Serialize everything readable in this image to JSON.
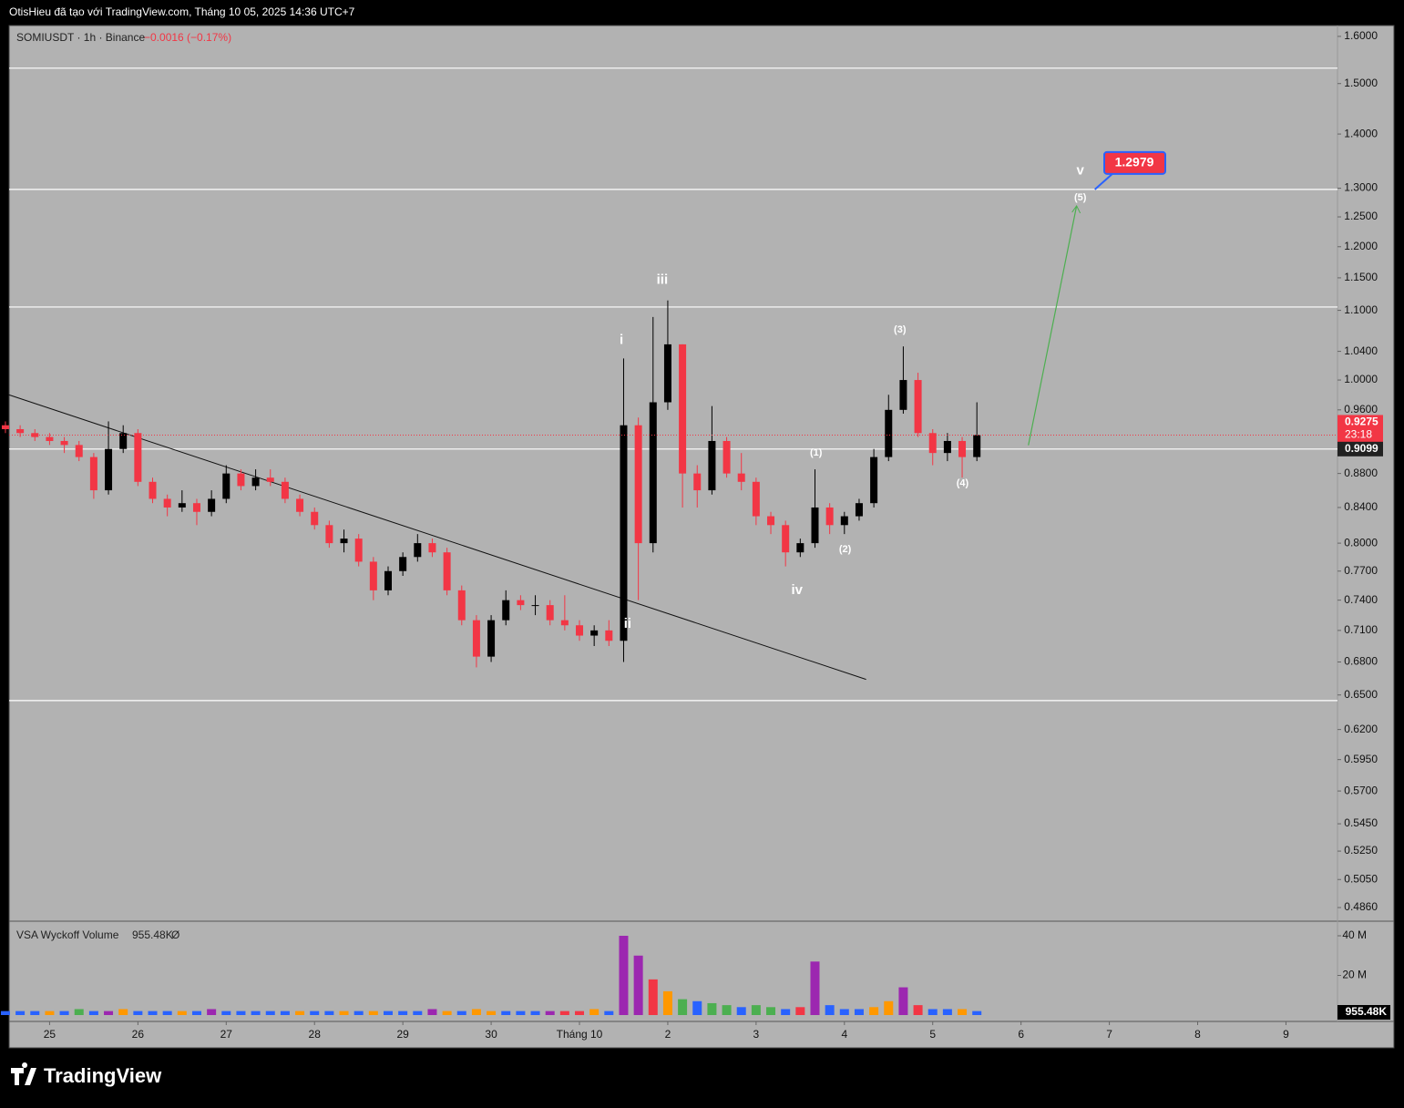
{
  "header": "OtisHieu đã tạo với TradingView.com, Tháng 10 05, 2025 14:36 UTC+7",
  "footer": "TradingView",
  "chart_data": {
    "type": "candlestick",
    "symbol": "SOMIUSDT · 1h · Binance",
    "change": "−0.0016 (−0.17%)",
    "x": [
      -12,
      -8,
      -4,
      0,
      4,
      8,
      12,
      16,
      20,
      24,
      28,
      32,
      36,
      40,
      44,
      48,
      52,
      56,
      60,
      64,
      68,
      72,
      76,
      80,
      84,
      88,
      92,
      96,
      100,
      104,
      108,
      112,
      116,
      120,
      124,
      128,
      132,
      136,
      140,
      144,
      148,
      152,
      156,
      160,
      164,
      168,
      172,
      176,
      180,
      184,
      188,
      192,
      196,
      200,
      204,
      208,
      212,
      216,
      220,
      224,
      228,
      232,
      236,
      240,
      244,
      248,
      252
    ],
    "open": [
      0.94,
      0.935,
      0.93,
      0.925,
      0.92,
      0.915,
      0.9,
      0.86,
      0.91,
      0.93,
      0.87,
      0.85,
      0.84,
      0.845,
      0.835,
      0.85,
      0.88,
      0.865,
      0.875,
      0.87,
      0.85,
      0.835,
      0.82,
      0.8,
      0.805,
      0.78,
      0.75,
      0.77,
      0.785,
      0.8,
      0.79,
      0.75,
      0.72,
      0.685,
      0.72,
      0.74,
      0.735,
      0.735,
      0.72,
      0.715,
      0.705,
      0.71,
      0.7,
      0.94,
      0.8,
      0.97,
      1.05,
      0.88,
      0.86,
      0.92,
      0.88,
      0.87,
      0.83,
      0.82,
      0.79,
      0.8,
      0.84,
      0.82,
      0.83,
      0.845,
      0.9,
      0.96,
      1.0,
      0.93,
      0.905,
      0.92,
      0.9
    ],
    "high": [
      0.945,
      0.94,
      0.935,
      0.93,
      0.925,
      0.92,
      0.905,
      0.945,
      0.94,
      0.935,
      0.875,
      0.855,
      0.86,
      0.85,
      0.86,
      0.89,
      0.885,
      0.885,
      0.885,
      0.875,
      0.855,
      0.84,
      0.825,
      0.815,
      0.81,
      0.785,
      0.775,
      0.79,
      0.81,
      0.805,
      0.795,
      0.755,
      0.725,
      0.725,
      0.75,
      0.745,
      0.745,
      0.74,
      0.745,
      0.72,
      0.715,
      0.72,
      1.03,
      0.95,
      1.09,
      1.115,
      1.05,
      0.89,
      0.965,
      0.925,
      0.905,
      0.875,
      0.835,
      0.825,
      0.805,
      0.885,
      0.845,
      0.835,
      0.85,
      0.91,
      0.98,
      1.047,
      1.01,
      0.935,
      0.93,
      0.925,
      0.97
    ],
    "low": [
      0.93,
      0.925,
      0.92,
      0.915,
      0.905,
      0.895,
      0.85,
      0.855,
      0.905,
      0.865,
      0.845,
      0.83,
      0.835,
      0.82,
      0.83,
      0.845,
      0.86,
      0.86,
      0.865,
      0.845,
      0.83,
      0.815,
      0.795,
      0.79,
      0.775,
      0.74,
      0.745,
      0.765,
      0.78,
      0.785,
      0.745,
      0.715,
      0.675,
      0.68,
      0.715,
      0.73,
      0.725,
      0.715,
      0.71,
      0.7,
      0.695,
      0.695,
      0.68,
      0.74,
      0.79,
      0.96,
      0.84,
      0.84,
      0.855,
      0.875,
      0.86,
      0.82,
      0.81,
      0.775,
      0.785,
      0.795,
      0.81,
      0.81,
      0.825,
      0.84,
      0.895,
      0.955,
      0.925,
      0.89,
      0.895,
      0.875,
      0.895
    ],
    "close": [
      0.935,
      0.93,
      0.925,
      0.92,
      0.915,
      0.9,
      0.86,
      0.91,
      0.93,
      0.87,
      0.85,
      0.84,
      0.845,
      0.835,
      0.85,
      0.88,
      0.865,
      0.875,
      0.87,
      0.85,
      0.835,
      0.82,
      0.8,
      0.805,
      0.78,
      0.75,
      0.77,
      0.785,
      0.8,
      0.79,
      0.75,
      0.72,
      0.685,
      0.72,
      0.74,
      0.735,
      0.735,
      0.72,
      0.715,
      0.705,
      0.71,
      0.7,
      0.94,
      0.8,
      0.97,
      1.05,
      0.88,
      0.86,
      0.92,
      0.88,
      0.87,
      0.83,
      0.82,
      0.79,
      0.8,
      0.84,
      0.82,
      0.83,
      0.845,
      0.9,
      0.96,
      1.0,
      0.93,
      0.905,
      0.92,
      0.9,
      0.9275
    ],
    "up_color": "#000000",
    "down_color": "#f23645",
    "xlim": [
      -11,
      350
    ],
    "xticks": [
      {
        "value": 0,
        "label": "25"
      },
      {
        "value": 24,
        "label": "26"
      },
      {
        "value": 48,
        "label": "27"
      },
      {
        "value": 72,
        "label": "28"
      },
      {
        "value": 96,
        "label": "29"
      },
      {
        "value": 120,
        "label": "30"
      },
      {
        "value": 144,
        "label": "Tháng 10"
      },
      {
        "value": 168,
        "label": "2"
      },
      {
        "value": 192,
        "label": "3"
      },
      {
        "value": 216,
        "label": "4"
      },
      {
        "value": 240,
        "label": "5"
      },
      {
        "value": 264,
        "label": "6"
      },
      {
        "value": 288,
        "label": "7"
      },
      {
        "value": 312,
        "label": "8"
      },
      {
        "value": 336,
        "label": "9"
      }
    ],
    "ylim": [
      0.4776,
      1.624
    ],
    "log_scale": true,
    "yticks": [
      {
        "value": 1.6,
        "label": "1.6000"
      },
      {
        "value": 1.5,
        "label": "1.5000"
      },
      {
        "value": 1.4,
        "label": "1.4000"
      },
      {
        "value": 1.3,
        "label": "1.3000"
      },
      {
        "value": 1.25,
        "label": "1.2500"
      },
      {
        "value": 1.2,
        "label": "1.2000"
      },
      {
        "value": 1.15,
        "label": "1.1500"
      },
      {
        "value": 1.1,
        "label": "1.1000"
      },
      {
        "value": 1.04,
        "label": "1.0400"
      },
      {
        "value": 1.0,
        "label": "1.0000"
      },
      {
        "value": 0.96,
        "label": "0.9600"
      },
      {
        "value": 0.88,
        "label": "0.8800"
      },
      {
        "value": 0.84,
        "label": "0.8400"
      },
      {
        "value": 0.8,
        "label": "0.8000"
      },
      {
        "value": 0.77,
        "label": "0.7700"
      },
      {
        "value": 0.74,
        "label": "0.7400"
      },
      {
        "value": 0.71,
        "label": "0.7100"
      },
      {
        "value": 0.68,
        "label": "0.6800"
      },
      {
        "value": 0.65,
        "label": "0.6500"
      },
      {
        "value": 0.62,
        "label": "0.6200"
      },
      {
        "value": 0.595,
        "label": "0.5950"
      },
      {
        "value": 0.57,
        "label": "0.5700"
      },
      {
        "value": 0.545,
        "label": "0.5450"
      },
      {
        "value": 0.525,
        "label": "0.5250"
      },
      {
        "value": 0.505,
        "label": "0.5050"
      },
      {
        "value": 0.486,
        "label": "0.4860"
      }
    ],
    "levels": [
      1.532,
      1.2979,
      1.105,
      0.9099,
      0.645
    ],
    "trendline": {
      "x": [
        -11.1,
        221.9
      ],
      "y": [
        0.98,
        0.664
      ]
    },
    "projection": {
      "x": [
        266,
        279.1
      ],
      "y": [
        0.9146,
        1.269
      ],
      "color": "#4caf50"
    },
    "wave_labels": [
      {
        "text": "i",
        "x": 155.4,
        "y": 1.056
      },
      {
        "text": "ii",
        "x": 157.1,
        "y": 0.716
      },
      {
        "text": "iii",
        "x": 166.5,
        "y": 1.146
      },
      {
        "text": "iv",
        "x": 203.1,
        "y": 0.75
      },
      {
        "text": "v",
        "x": 280.1,
        "y": 1.331
      },
      {
        "text": "(1)",
        "x": 208.3,
        "y": 0.905
      },
      {
        "text": "(2)",
        "x": 216.2,
        "y": 0.793
      },
      {
        "text": "(3)",
        "x": 231.1,
        "y": 1.071
      },
      {
        "text": "(4)",
        "x": 248.1,
        "y": 0.868
      },
      {
        "text": "(5)",
        "x": 280.1,
        "y": 1.283
      }
    ],
    "last_price": 0.9275,
    "countdown": "23:18",
    "level_label": 0.9099,
    "target": 1.2979,
    "volume": {
      "title": "VSA Wyckoff Volume",
      "readout": "955.48K",
      "symbol": "Ø",
      "values": [
        2,
        2,
        2,
        2,
        2,
        3,
        2,
        2,
        3,
        2,
        2,
        2,
        2,
        2,
        3,
        2,
        2,
        2,
        2,
        2,
        2,
        2,
        2,
        2,
        2,
        2,
        2,
        2,
        2,
        3,
        2,
        2,
        3,
        2,
        2,
        2,
        2,
        2,
        2,
        2,
        3,
        2,
        40,
        30,
        18,
        12,
        8,
        7,
        6,
        5,
        4,
        5,
        4,
        3,
        4,
        27,
        5,
        3,
        3,
        4,
        7,
        14,
        5,
        3,
        3,
        3,
        2
      ],
      "colors": [
        "#2962ff",
        "#2962ff",
        "#2962ff",
        "#ff9800",
        "#2962ff",
        "#4caf50",
        "#2962ff",
        "#9c27b0",
        "#ff9800",
        "#2962ff",
        "#2962ff",
        "#2962ff",
        "#ff9800",
        "#2962ff",
        "#9c27b0",
        "#2962ff",
        "#2962ff",
        "#2962ff",
        "#2962ff",
        "#2962ff",
        "#ff9800",
        "#2962ff",
        "#2962ff",
        "#ff9800",
        "#2962ff",
        "#ff9800",
        "#2962ff",
        "#2962ff",
        "#2962ff",
        "#9c27b0",
        "#ff9800",
        "#2962ff",
        "#ff9800",
        "#ff9800",
        "#2962ff",
        "#2962ff",
        "#2962ff",
        "#9c27b0",
        "#f23645",
        "#f23645",
        "#ff9800",
        "#2962ff",
        "#9c27b0",
        "#9c27b0",
        "#f23645",
        "#ff9800",
        "#4caf50",
        "#2962ff",
        "#4caf50",
        "#4caf50",
        "#2962ff",
        "#4caf50",
        "#4caf50",
        "#2962ff",
        "#f23645",
        "#9c27b0",
        "#2962ff",
        "#2962ff",
        "#2962ff",
        "#ff9800",
        "#ff9800",
        "#9c27b0",
        "#f23645",
        "#2962ff",
        "#2962ff",
        "#ff9800",
        "#2962ff"
      ],
      "ylim": [
        0,
        46.9
      ],
      "yticks": [
        {
          "value": 20,
          "label": "20 M"
        },
        {
          "value": 40,
          "label": "40 M"
        }
      ]
    }
  }
}
